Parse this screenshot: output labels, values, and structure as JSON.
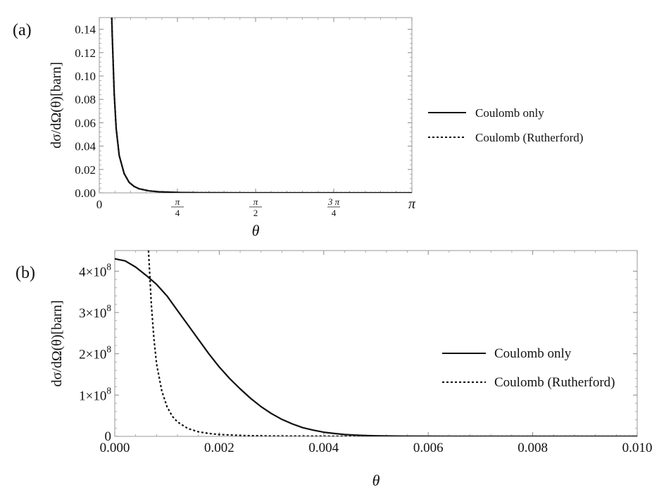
{
  "figure": {
    "panel_a_label": "(a)",
    "panel_b_label": "(b)"
  },
  "chart_data": [
    {
      "panel": "(a)",
      "type": "line",
      "xlabel": "θ",
      "ylabel": "dσ/dΩ(θ)[barn]",
      "xlim": [
        0,
        3.14159
      ],
      "ylim": [
        0,
        0.15
      ],
      "x_ticks": [
        {
          "value": 0,
          "label": "0"
        },
        {
          "value": 0.7854,
          "num": "π",
          "den": "4"
        },
        {
          "value": 1.5708,
          "num": "π",
          "den": "2"
        },
        {
          "value": 2.3562,
          "num": "3 π",
          "den": "4"
        },
        {
          "value": 3.14159,
          "label": "π"
        }
      ],
      "y_ticks": [
        {
          "value": 0.0,
          "label": "0.00"
        },
        {
          "value": 0.02,
          "label": "0.02"
        },
        {
          "value": 0.04,
          "label": "0.04"
        },
        {
          "value": 0.06,
          "label": "0.06"
        },
        {
          "value": 0.08,
          "label": "0.08"
        },
        {
          "value": 0.1,
          "label": "0.10"
        },
        {
          "value": 0.12,
          "label": "0.12"
        },
        {
          "value": 0.14,
          "label": "0.14"
        }
      ],
      "series": [
        {
          "name": "Coulomb only",
          "style": "solid",
          "x": [
            0.125,
            0.13,
            0.15,
            0.17,
            0.2,
            0.25,
            0.3,
            0.35,
            0.4,
            0.5,
            0.6,
            0.8,
            1.0,
            1.5,
            2.0,
            2.5,
            3.14
          ],
          "y": [
            0.15,
            0.135,
            0.085,
            0.055,
            0.032,
            0.0165,
            0.009,
            0.0055,
            0.0035,
            0.0017,
            0.0009,
            0.0003,
            0.00012,
            3e-05,
            1e-05,
            4e-06,
            1e-06
          ]
        },
        {
          "name": "Coulomb (Rutherford)",
          "style": "dashed",
          "x": [
            0.125,
            0.13,
            0.15,
            0.17,
            0.2,
            0.25,
            0.3,
            0.35,
            0.4,
            0.5,
            0.6,
            0.8,
            1.0,
            1.5,
            2.0,
            2.5,
            3.14
          ],
          "y": [
            0.15,
            0.135,
            0.085,
            0.055,
            0.032,
            0.0165,
            0.009,
            0.0055,
            0.0035,
            0.0017,
            0.0009,
            0.0003,
            0.00012,
            3e-05,
            1e-05,
            4e-06,
            1e-06
          ]
        }
      ],
      "legend": "right"
    },
    {
      "panel": "(b)",
      "type": "line",
      "xlabel": "θ",
      "ylabel": "dσ/dΩ(θ)[barn]",
      "xlim": [
        0,
        0.01
      ],
      "ylim": [
        0,
        450000000
      ],
      "x_ticks": [
        {
          "value": 0.0,
          "label": "0.000"
        },
        {
          "value": 0.002,
          "label": "0.002"
        },
        {
          "value": 0.004,
          "label": "0.004"
        },
        {
          "value": 0.006,
          "label": "0.006"
        },
        {
          "value": 0.008,
          "label": "0.008"
        },
        {
          "value": 0.01,
          "label": "0.010"
        }
      ],
      "y_ticks": [
        {
          "value": 0,
          "label": "0"
        },
        {
          "value": 100000000,
          "mant": "1",
          "exp": "8"
        },
        {
          "value": 200000000,
          "mant": "2",
          "exp": "8"
        },
        {
          "value": 300000000,
          "mant": "3",
          "exp": "8"
        },
        {
          "value": 400000000,
          "mant": "4",
          "exp": "8"
        }
      ],
      "series": [
        {
          "name": "Coulomb only",
          "style": "solid",
          "x": [
            0,
            0.0002,
            0.0004,
            0.0006,
            0.0008,
            0.001,
            0.0012,
            0.0014,
            0.0016,
            0.0018,
            0.002,
            0.0022,
            0.0024,
            0.0026,
            0.0028,
            0.003,
            0.0032,
            0.0034,
            0.0036,
            0.0038,
            0.004,
            0.0042,
            0.0044,
            0.0046,
            0.0048,
            0.005,
            0.0055,
            0.006,
            0.007,
            0.008,
            0.009,
            0.01
          ],
          "y": [
            430000000,
            425000000,
            410000000,
            390000000,
            368000000,
            340000000,
            305000000,
            270000000,
            235000000,
            200000000,
            168000000,
            140000000,
            115000000,
            92000000,
            72000000,
            55000000,
            41000000,
            30000000,
            21000000,
            15000000,
            10000000,
            7000000,
            4500000,
            3000000,
            2000000,
            1300000,
            500000,
            200000,
            50000,
            10000,
            2000,
            0
          ]
        },
        {
          "name": "Coulomb (Rutherford)",
          "style": "dashed",
          "x": [
            0.000645,
            0.0007,
            0.00075,
            0.0008,
            0.0009,
            0.001,
            0.0011,
            0.0012,
            0.0014,
            0.0016,
            0.0018,
            0.002,
            0.0025,
            0.003,
            0.004,
            0.005,
            0.006,
            0.008,
            0.01
          ],
          "y": [
            450000000,
            320000000,
            235000000,
            175000000,
            110000000,
            72000000,
            49000000,
            35000000,
            19000000,
            11000000,
            7000000,
            4500000,
            1900000,
            900000,
            300000,
            120000,
            60000,
            20000,
            8000
          ]
        }
      ],
      "legend": "right"
    }
  ]
}
